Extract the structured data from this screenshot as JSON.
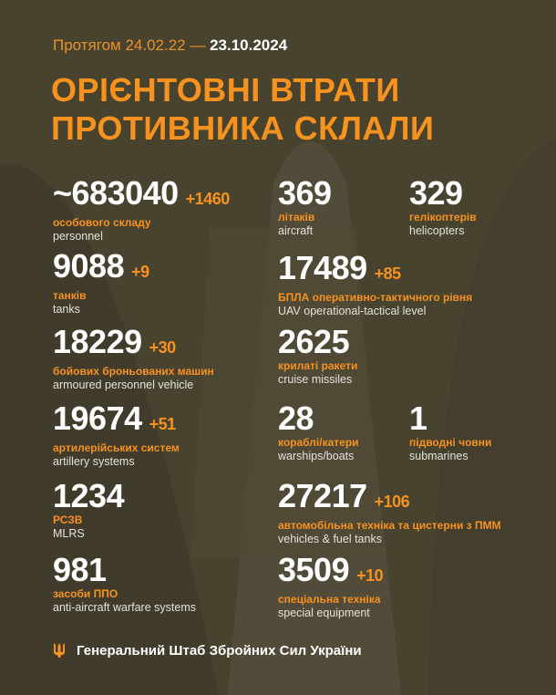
{
  "header": {
    "date_prefix": "Протягом 24.02.22 —",
    "date_end": "23.10.2024",
    "title_line1": "ОРІЄНТОВНІ ВТРАТИ",
    "title_line2": "ПРОТИВНИКА СКЛАЛИ"
  },
  "items": [
    {
      "value": "~683040",
      "delta": "+1460",
      "ua": "особового складу",
      "en": "personnel"
    },
    {
      "value": "369",
      "delta": "",
      "ua": "літаків",
      "en": "aircraft"
    },
    {
      "value": "329",
      "delta": "",
      "ua": "гелікоптерів",
      "en": "helicopters"
    },
    {
      "value": "9088",
      "delta": "+9",
      "ua": "танків",
      "en": "tanks"
    },
    {
      "value": "17489",
      "delta": "+85",
      "ua": "БПЛА оперативно-тактичного рівня",
      "en": "UAV operational-tactical level"
    },
    {
      "value": "18229",
      "delta": "+30",
      "ua": "бойових броньованих машин",
      "en": "armoured personnel vehicle"
    },
    {
      "value": "2625",
      "delta": "",
      "ua": "крилаті ракети",
      "en": "cruise missiles"
    },
    {
      "value": "19674",
      "delta": "+51",
      "ua": "артилерійських систем",
      "en": "artillery systems"
    },
    {
      "value": "28",
      "delta": "",
      "ua": "кораблі/катери",
      "en": "warships/boats"
    },
    {
      "value": "1",
      "delta": "",
      "ua": "підводні човни",
      "en": "submarines"
    },
    {
      "value": "1234",
      "delta": "",
      "ua": "РСЗВ",
      "en": "MLRS"
    },
    {
      "value": "27217",
      "delta": "+106",
      "ua": "автомобільна техніка та цистерни з ПММ",
      "en": "vehicles & fuel tanks"
    },
    {
      "value": "981",
      "delta": "",
      "ua": "засоби ППО",
      "en": "anti-aircraft warfare systems"
    },
    {
      "value": "3509",
      "delta": "+10",
      "ua": "спеціальна техніка",
      "en": "special equipment"
    }
  ],
  "footer": {
    "org": "Генеральний Штаб Збройних Сил України",
    "icon": "trident-icon"
  },
  "colors": {
    "accent": "#f7921e",
    "background": "#48432f",
    "text": "#ffffff"
  }
}
